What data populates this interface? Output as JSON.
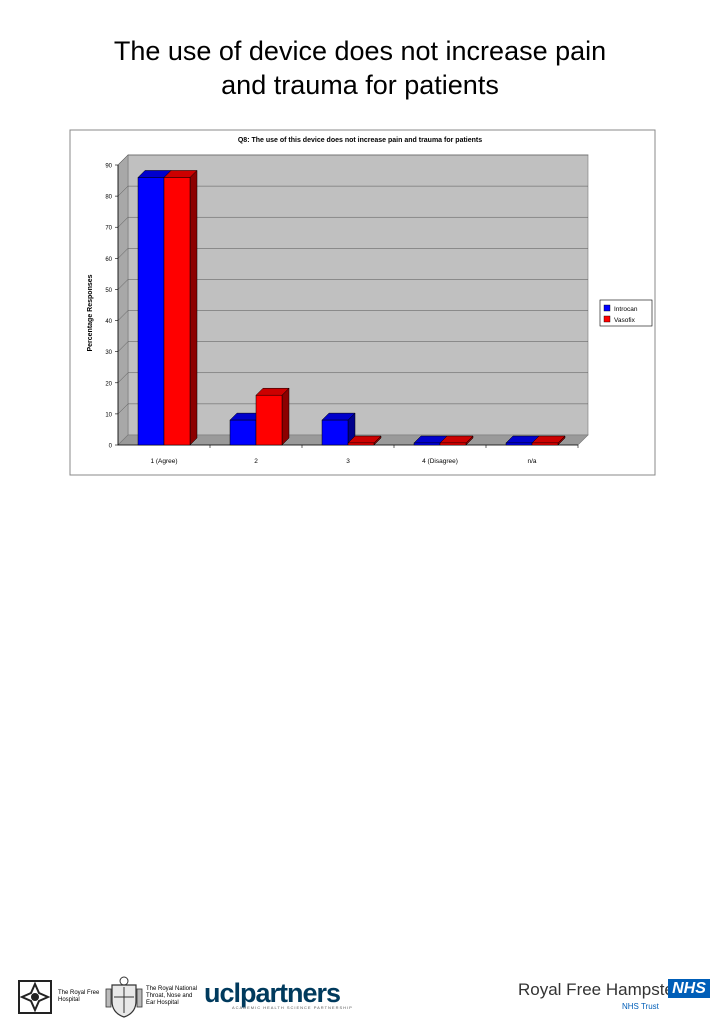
{
  "slide": {
    "title_line1": "The use of device does not increase pain",
    "title_line2": "and trauma for patients"
  },
  "chart_data": {
    "type": "bar",
    "title": "Q8: The use of this device does not increase pain and trauma for patients",
    "ylabel": "Percentage Responses",
    "xlabel": "",
    "categories": [
      "1 (Agree)",
      "2",
      "3",
      "4 (Disagree)",
      "n/a"
    ],
    "yticks": [
      "0",
      "10",
      "20",
      "30",
      "40",
      "50",
      "60",
      "70",
      "80",
      "90"
    ],
    "ylim": [
      0,
      90
    ],
    "series": [
      {
        "name": "Introcan",
        "color": "#0000ff",
        "values": [
          86,
          8,
          8,
          0,
          0
        ]
      },
      {
        "name": "Vasofix",
        "color": "#ff0000",
        "values": [
          86,
          16,
          0,
          0,
          0
        ]
      }
    ],
    "legend_position": "right",
    "plot_background": "#c0c0c0",
    "grid": true
  },
  "footer": {
    "royal_free_hospital": "The Royal Free Hospital",
    "rnt_line1": "The Royal National",
    "rnt_line2": "Throat, Nose and",
    "rnt_line3": "Ear Hospital",
    "ucl_partners": "uclpartners",
    "ucl_sub": "ACADEMIC HEALTH SCIENCE PARTNERSHIP",
    "royal_free_hampstead": "Royal Free Hampstead",
    "nhs": "NHS",
    "nhs_trust": "NHS Trust"
  }
}
